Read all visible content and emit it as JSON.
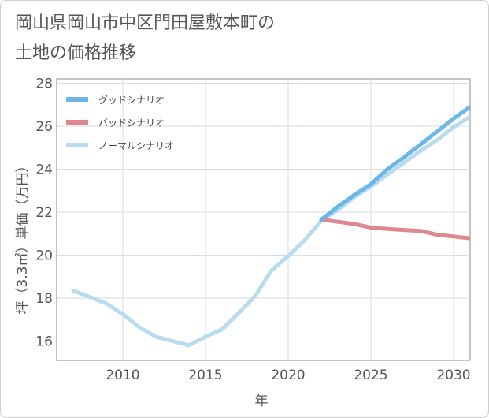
{
  "header": {
    "title_line1": "岡山県岡山市中区門田屋敷本町の",
    "title_line2": "土地の価格推移"
  },
  "chart_data": {
    "type": "line",
    "title": "岡山県岡山市中区門田屋敷本町の土地の価格推移",
    "xlabel": "年",
    "ylabel": "坪（3.3㎡）単価（万円）",
    "xlim": [
      2006,
      2031
    ],
    "ylim": [
      15.1,
      28.2
    ],
    "xticks": [
      2010,
      2015,
      2020,
      2025,
      2030
    ],
    "yticks": [
      16,
      18,
      20,
      22,
      24,
      26,
      28
    ],
    "grid": true,
    "legend_position": "top-left",
    "series": [
      {
        "name": "グッドシナリオ",
        "color": "#6cb6e8",
        "x": [
          2022,
          2023,
          2024,
          2025,
          2026,
          2027,
          2028,
          2029,
          2030,
          2031
        ],
        "y": [
          21.65,
          22.25,
          22.8,
          23.3,
          24.0,
          24.55,
          25.15,
          25.75,
          26.35,
          26.9
        ]
      },
      {
        "name": "バッドシナリオ",
        "color": "#e0868f",
        "x": [
          2022,
          2023,
          2024,
          2025,
          2026,
          2027,
          2028,
          2029,
          2030,
          2031
        ],
        "y": [
          21.65,
          21.55,
          21.45,
          21.28,
          21.22,
          21.17,
          21.13,
          20.95,
          20.87,
          20.78
        ]
      },
      {
        "name": "ノーマルシナリオ",
        "color": "#b8dcee",
        "x": [
          2007,
          2008,
          2009,
          2010,
          2011,
          2012,
          2013,
          2014,
          2015,
          2016,
          2017,
          2018,
          2019,
          2020,
          2021,
          2022,
          2023,
          2024,
          2025,
          2026,
          2027,
          2028,
          2029,
          2030,
          2031
        ],
        "y": [
          18.35,
          18.05,
          17.75,
          17.25,
          16.65,
          16.2,
          16.0,
          15.8,
          16.2,
          16.55,
          17.3,
          18.1,
          19.3,
          19.95,
          20.7,
          21.6,
          22.1,
          22.7,
          23.2,
          23.75,
          24.3,
          24.85,
          25.35,
          25.95,
          26.45
        ]
      }
    ]
  }
}
